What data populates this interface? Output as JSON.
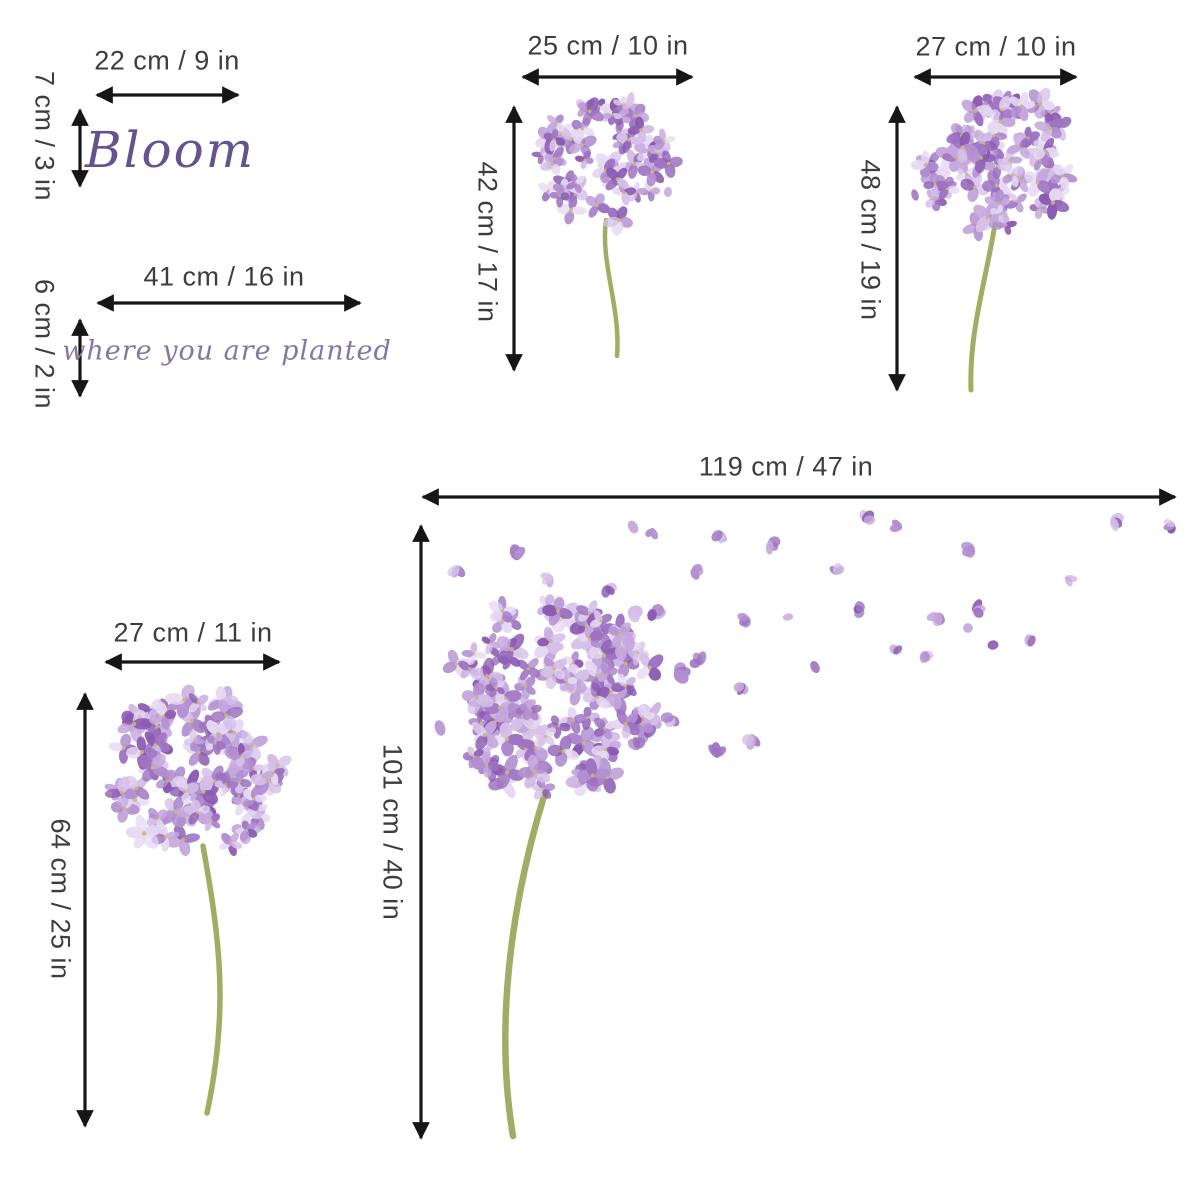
{
  "sheet": {
    "description": "Purple hydrangea wall decal size chart",
    "groups": [
      {
        "name": "bloom-script-decal",
        "script_text": "Bloom",
        "width_label": "22 cm / 9 in",
        "height_label": "7 cm / 3 in"
      },
      {
        "name": "planted-script-decal",
        "script_text": "where you are planted",
        "width_label": "41 cm / 16 in",
        "height_label": "6 cm / 2 in"
      },
      {
        "name": "small-hydrangea-decal",
        "width_label": "25 cm / 10 in",
        "height_label": "42 cm / 17 in"
      },
      {
        "name": "medium-hydrangea-decal",
        "width_label": "27 cm / 10 in",
        "height_label": "48 cm / 19 in"
      },
      {
        "name": "large-hydrangea-decal",
        "width_label": "27 cm / 11 in",
        "height_label": "64 cm / 25 in"
      },
      {
        "name": "blowing-hydrangea-decal",
        "width_label": "119 cm / 47 in",
        "height_label": "101 cm / 40 in"
      }
    ]
  },
  "colors": {
    "arrow": "#161616",
    "dimension_text": "#3d3d3d",
    "bloom_script": "#63538e",
    "planted_script": "#8476a6",
    "petal_palette": [
      "#e6d8f2",
      "#d6c0e9",
      "#c5a7dd",
      "#b28fd0",
      "#9e74c2",
      "#8a5ab2"
    ],
    "floret_center": "#c9b96a",
    "stem": "#9fae64"
  }
}
